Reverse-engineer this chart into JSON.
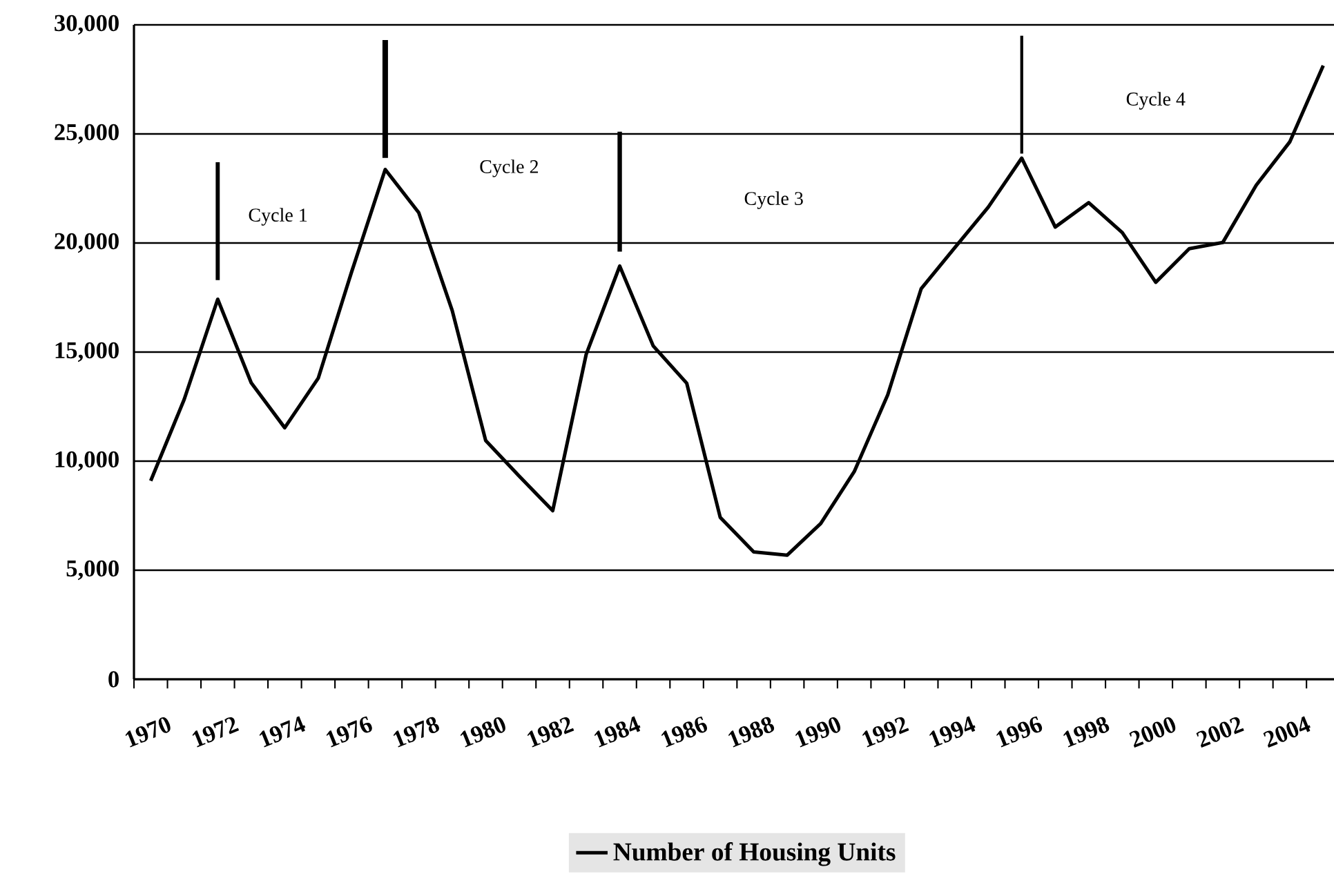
{
  "chart_data": {
    "type": "line",
    "categories": [
      "1970",
      null,
      "1972",
      null,
      "1974",
      null,
      "1976",
      null,
      "1978",
      null,
      "1980",
      null,
      "1982",
      null,
      "1984",
      null,
      "1986",
      null,
      "1988",
      null,
      "1990",
      null,
      "1992",
      null,
      "1994",
      null,
      "1996",
      null,
      "1998",
      null,
      "2000",
      null,
      "2002",
      null,
      "2004",
      null
    ],
    "series": [
      {
        "name": "Number of Housing Units",
        "color": "#000000",
        "values": [
          9100,
          12830,
          17420,
          13590,
          11530,
          13800,
          18690,
          23370,
          21390,
          16900,
          10940,
          9310,
          7730,
          14900,
          18940,
          15280,
          13570,
          7420,
          5840,
          5690,
          7140,
          9520,
          13040,
          17910,
          19780,
          21640,
          23890,
          20730,
          21850,
          20480,
          18200,
          19740,
          20020,
          22650,
          24630,
          28130
        ]
      }
    ],
    "ylim": [
      0,
      30000
    ],
    "yticks": [
      0,
      {
        "value": 5000,
        "label": "5,000"
      },
      {
        "value": 10000,
        "label": "10,000"
      },
      {
        "value": 15000,
        "label": "15,000"
      },
      {
        "value": 20000,
        "label": "20,000"
      },
      {
        "value": 25000,
        "label": "25,000"
      },
      {
        "value": 30000,
        "label": "30,000"
      }
    ],
    "grid": "y",
    "legend": "bottom",
    "annotations": [
      "Cycle 1",
      "Cycle 2",
      "Cycle 3",
      "Cycle 4"
    ]
  }
}
